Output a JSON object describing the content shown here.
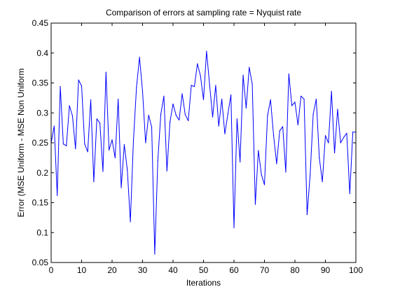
{
  "chart_data": {
    "type": "line",
    "title": "Comparison of errors at sampling rate = Nyquist rate",
    "xlabel": "Iterations",
    "ylabel": "Error (MSE Uniform - MSE Non Uniform",
    "xlim": [
      0,
      100
    ],
    "ylim": [
      0.05,
      0.45
    ],
    "xticks": [
      0,
      10,
      20,
      30,
      40,
      50,
      60,
      70,
      80,
      90,
      100
    ],
    "xtick_labels": [
      "0",
      "10",
      "20",
      "30",
      "40",
      "50",
      "60",
      "70",
      "80",
      "90",
      "100"
    ],
    "yticks": [
      0.05,
      0.1,
      0.15,
      0.2,
      0.25,
      0.3,
      0.35,
      0.4,
      0.45
    ],
    "ytick_labels": [
      "0.05",
      "0.1",
      "0.15",
      "0.2",
      "0.25",
      "0.3",
      "0.35",
      "0.4",
      "0.45"
    ],
    "grid": false,
    "legend": "none",
    "series": [
      {
        "color": "#0000ff",
        "x": [
          0,
          1,
          2,
          3,
          4,
          5,
          6,
          7,
          8,
          9,
          10,
          11,
          12,
          13,
          14,
          15,
          16,
          17,
          18,
          19,
          20,
          21,
          22,
          23,
          24,
          25,
          26,
          27,
          28,
          29,
          30,
          31,
          32,
          33,
          34,
          35,
          36,
          37,
          38,
          39,
          40,
          41,
          42,
          43,
          44,
          45,
          46,
          47,
          48,
          49,
          50,
          51,
          52,
          53,
          54,
          55,
          56,
          57,
          58,
          59,
          60,
          61,
          62,
          63,
          64,
          65,
          66,
          67,
          68,
          69,
          70,
          71,
          72,
          73,
          74,
          75,
          76,
          77,
          78,
          79,
          80,
          81,
          82,
          83,
          84,
          85,
          86,
          87,
          88,
          89,
          90,
          91,
          92,
          93,
          94,
          95,
          96,
          97,
          98,
          99,
          100
        ],
        "y": [
          0.25,
          0.278,
          0.162,
          0.344,
          0.248,
          0.245,
          0.312,
          0.295,
          0.24,
          0.355,
          0.345,
          0.248,
          0.235,
          0.322,
          0.185,
          0.29,
          0.283,
          0.202,
          0.368,
          0.238,
          0.255,
          0.225,
          0.323,
          0.175,
          0.247,
          0.205,
          0.118,
          0.253,
          0.342,
          0.393,
          0.336,
          0.25,
          0.296,
          0.276,
          0.064,
          0.22,
          0.298,
          0.328,
          0.203,
          0.285,
          0.315,
          0.296,
          0.288,
          0.332,
          0.297,
          0.287,
          0.346,
          0.344,
          0.382,
          0.362,
          0.322,
          0.403,
          0.347,
          0.293,
          0.346,
          0.278,
          0.323,
          0.265,
          0.298,
          0.33,
          0.108,
          0.29,
          0.218,
          0.363,
          0.308,
          0.376,
          0.348,
          0.147,
          0.237,
          0.197,
          0.18,
          0.295,
          0.322,
          0.262,
          0.215,
          0.27,
          0.277,
          0.201,
          0.365,
          0.312,
          0.318,
          0.28,
          0.328,
          0.323,
          0.13,
          0.197,
          0.298,
          0.323,
          0.225,
          0.185,
          0.262,
          0.25,
          0.336,
          0.233,
          0.306,
          0.25,
          0.259,
          0.266,
          0.165,
          0.268,
          0.268
        ]
      }
    ]
  }
}
